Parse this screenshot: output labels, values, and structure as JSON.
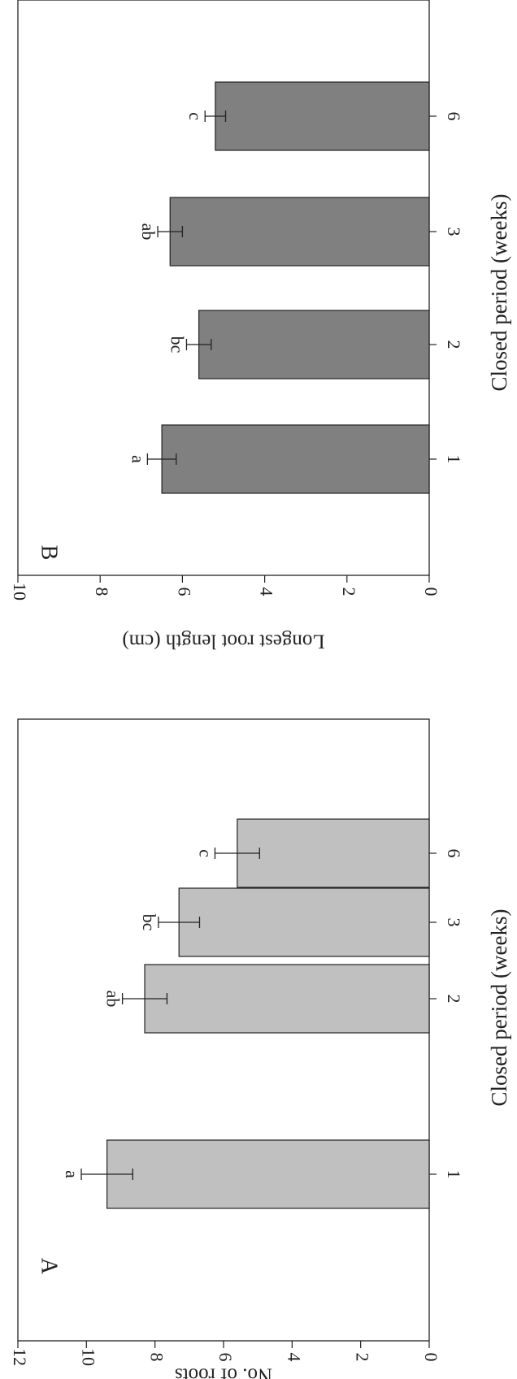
{
  "chart_data": [
    {
      "type": "bar",
      "panel_label": "A",
      "categories": [
        "1",
        "2",
        "3",
        "6"
      ],
      "values": [
        9.4,
        8.3,
        7.3,
        5.6
      ],
      "errors": [
        0.75,
        0.65,
        0.6,
        0.65
      ],
      "letters": [
        "a",
        "ab",
        "bc",
        "c"
      ],
      "ylabel": "No. of roots",
      "xlabel": "Closed period (weeks)",
      "ylim": [
        0,
        12
      ],
      "yticks": [
        0,
        2,
        4,
        6,
        8,
        10,
        12
      ],
      "bar_color": "#c0c0c0",
      "grid": false,
      "orientation": "rotated 90° clockwise"
    },
    {
      "type": "bar",
      "panel_label": "B",
      "categories": [
        "1",
        "2",
        "3",
        "6"
      ],
      "values": [
        6.5,
        5.6,
        6.3,
        5.2
      ],
      "errors": [
        0.35,
        0.3,
        0.3,
        0.25
      ],
      "letters": [
        "a",
        "bc",
        "ab",
        "c"
      ],
      "ylabel": "Longest root length (cm)",
      "xlabel": "Closed period (weeks)",
      "ylim": [
        0,
        10
      ],
      "yticks": [
        0,
        2,
        4,
        6,
        8,
        10
      ],
      "bar_color": "#808080",
      "grid": false,
      "orientation": "rotated 90° clockwise"
    }
  ]
}
